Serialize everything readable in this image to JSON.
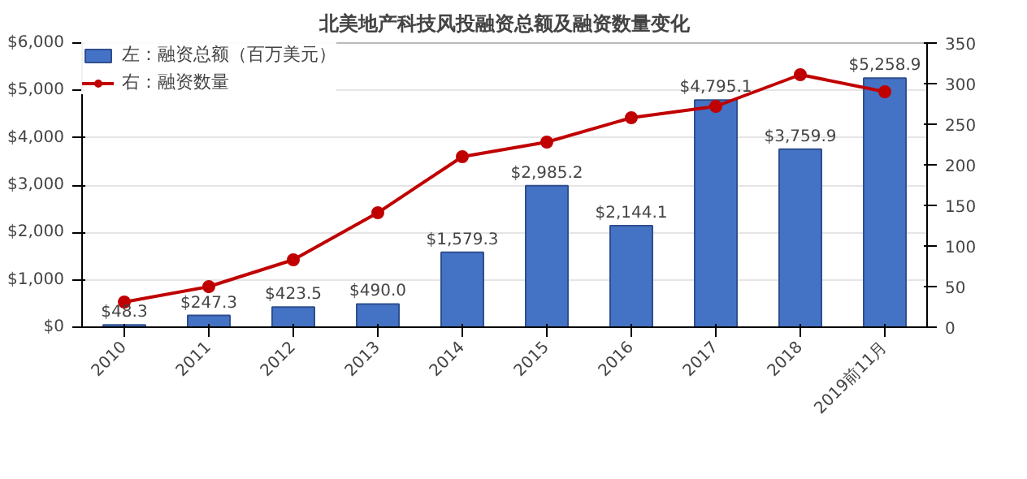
{
  "chart_data": {
    "type": "bar",
    "title": "北美地产科技风投融资总额及融资数量变化",
    "categories": [
      "2010",
      "2011",
      "2012",
      "2013",
      "2014",
      "2015",
      "2016",
      "2017",
      "2018",
      "2019前11月"
    ],
    "series": [
      {
        "name": "左：融资总额（百万美元）",
        "color": "#4472c4",
        "values": [
          48.3,
          247.3,
          423.5,
          490.0,
          1579.3,
          2985.2,
          2144.1,
          4795.1,
          3759.9,
          5258.9
        ],
        "value_labels": [
          "$48.3",
          "$247.3",
          "$423.5",
          "$490.0",
          "$1,579.3",
          "$2,985.2",
          "$2,144.1",
          "$4,795.1",
          "$3,759.9",
          "$5,258.9"
        ]
      },
      {
        "name": "右：融资数量",
        "color": "#c00000",
        "type": "line",
        "axis": "y2",
        "marker": "circle",
        "values": [
          31,
          50,
          83,
          141,
          210,
          228,
          258,
          272,
          311,
          290
        ]
      }
    ],
    "ylim": [
      0,
      6000
    ],
    "yticks": [
      {
        "value": 0,
        "label": "$0"
      },
      {
        "value": 1000,
        "label": "$1,000"
      },
      {
        "value": 2000,
        "label": "$2,000"
      },
      {
        "value": 3000,
        "label": "$3,000"
      },
      {
        "value": 4000,
        "label": "$4,000"
      },
      {
        "value": 5000,
        "label": "$5,000"
      },
      {
        "value": 6000,
        "label": "$6,000"
      }
    ],
    "y2lim": [
      0,
      350
    ],
    "y2ticks": [
      0,
      50,
      100,
      150,
      200,
      250,
      300,
      350
    ],
    "grid": "y",
    "legend": "top left"
  }
}
